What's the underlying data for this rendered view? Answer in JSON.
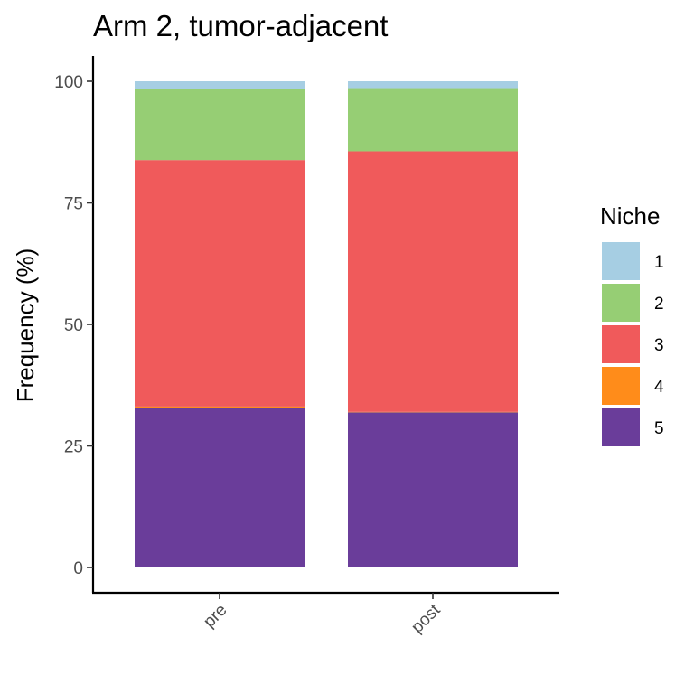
{
  "chart_data": {
    "type": "bar",
    "stacked": true,
    "title": "Arm 2, tumor-adjacent",
    "xlabel": "",
    "ylabel": "Frequency (%)",
    "categories": [
      "pre",
      "post"
    ],
    "ylim": [
      0,
      100
    ],
    "yticks": [
      0,
      25,
      50,
      75,
      100
    ],
    "legend": {
      "title": "Niche",
      "placement": "right"
    },
    "grid": false,
    "series": [
      {
        "name": "1",
        "color": "#a6cee3",
        "values": [
          1.6,
          1.4
        ]
      },
      {
        "name": "2",
        "color": "#96ce74",
        "values": [
          14.6,
          13.0
        ]
      },
      {
        "name": "3",
        "color": "#f05a5b",
        "values": [
          50.7,
          53.6
        ]
      },
      {
        "name": "4",
        "color": "#ff8c1a",
        "values": [
          0.2,
          0.1
        ]
      },
      {
        "name": "5",
        "color": "#6a3d9a",
        "values": [
          32.9,
          31.9
        ]
      }
    ]
  }
}
